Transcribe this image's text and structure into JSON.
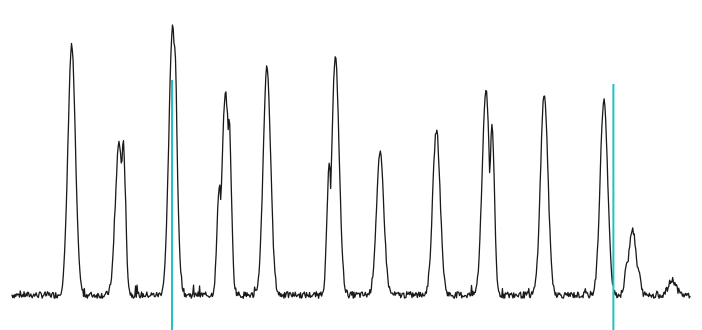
{
  "chart_data": {
    "type": "line",
    "title": "",
    "xlabel": "",
    "ylabel": "",
    "grid": false,
    "legend": "none",
    "xlim": [
      0,
      100
    ],
    "ylim": [
      0,
      100
    ],
    "colors": {
      "trace": "#1a1a1a",
      "markers": "#22c1c9",
      "background": "#ffffff"
    },
    "baseline": 5,
    "peaks": [
      {
        "x": 8.8,
        "y": 88,
        "shoulders": []
      },
      {
        "x": 15.8,
        "y": 56,
        "shoulders": [
          {
            "dx": 0.6,
            "y": 56
          }
        ]
      },
      {
        "x": 23.7,
        "y": 95,
        "shoulders": [
          {
            "dx": 0.3,
            "y": 88
          }
        ]
      },
      {
        "x": 31.5,
        "y": 72,
        "shoulders": [
          {
            "dx": -0.9,
            "y": 42
          },
          {
            "dx": 0.5,
            "y": 64
          }
        ]
      },
      {
        "x": 37.6,
        "y": 81,
        "shoulders": [
          {
            "dx": 0.4,
            "y": 30
          }
        ]
      },
      {
        "x": 47.7,
        "y": 84,
        "shoulders": [
          {
            "dx": -0.9,
            "y": 48
          }
        ]
      },
      {
        "x": 54.3,
        "y": 52,
        "shoulders": [
          {
            "dx": 0.4,
            "y": 32
          }
        ]
      },
      {
        "x": 62.6,
        "y": 60,
        "shoulders": []
      },
      {
        "x": 69.9,
        "y": 73,
        "shoulders": [
          {
            "dx": 0.9,
            "y": 62
          }
        ]
      },
      {
        "x": 78.5,
        "y": 72,
        "shoulders": []
      },
      {
        "x": 87.3,
        "y": 70,
        "shoulders": []
      },
      {
        "x": 91.5,
        "y": 27,
        "shoulders": [
          {
            "dx": -0.7,
            "y": 17
          },
          {
            "dx": 0.8,
            "y": 14
          }
        ]
      },
      {
        "x": 97.4,
        "y": 10,
        "shoulders": []
      }
    ],
    "markers": [
      {
        "x": 23.6
      },
      {
        "x": 88.7
      }
    ]
  }
}
